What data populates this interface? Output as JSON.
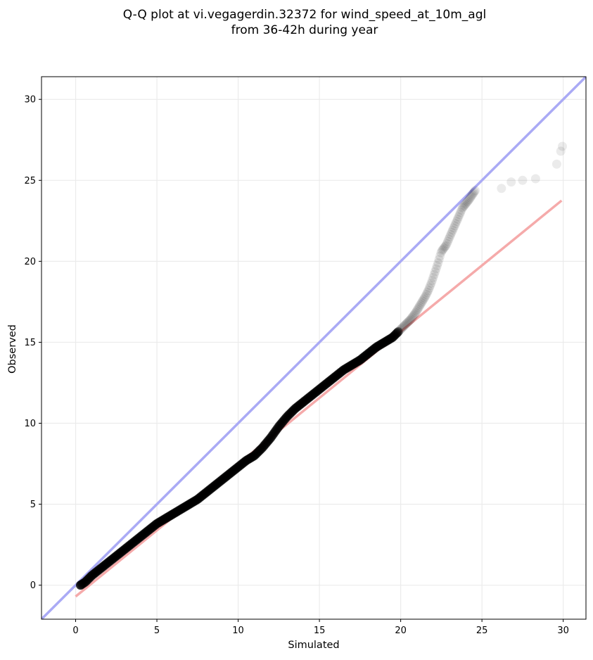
{
  "chart_data": {
    "type": "scatter",
    "title": [
      "Q-Q plot at vi.vegagerdin.32372 for wind_speed_at_10m_agl",
      "from 36-42h during year"
    ],
    "xlabel": "Simulated",
    "ylabel": "Observed",
    "xlim": [
      -2.1,
      31.4
    ],
    "ylim": [
      -2.1,
      31.4
    ],
    "xticks": [
      0,
      5,
      10,
      15,
      20,
      25,
      30
    ],
    "yticks": [
      0,
      5,
      10,
      15,
      20,
      25,
      30
    ],
    "grid": true,
    "colors": {
      "points": "#000000",
      "identity_line": "#aaaaf5",
      "fit_line": "#f5aaaa",
      "frame": "#000000",
      "grid": "#ebebeb"
    },
    "reference_lines": [
      {
        "kind": "identity",
        "x": [
          -2.1,
          31.4
        ],
        "y": [
          -2.1,
          31.4
        ]
      },
      {
        "kind": "regression",
        "x": [
          0.0,
          29.9
        ],
        "y": [
          -0.7,
          23.75
        ]
      }
    ],
    "quantile_points": {
      "x": [
        0.3,
        0.6,
        1.0,
        1.5,
        2.0,
        2.5,
        3.0,
        3.5,
        4.0,
        4.5,
        5.0,
        5.5,
        6.0,
        6.5,
        7.0,
        7.5,
        8.0,
        8.5,
        9.0,
        9.5,
        10.0,
        10.5,
        11.0,
        11.5,
        12.0,
        12.5,
        13.0,
        13.5,
        14.0,
        14.5,
        15.0,
        15.5,
        16.0,
        16.5,
        17.0,
        17.5,
        18.0,
        18.5,
        19.0,
        19.5,
        19.9,
        20.3,
        20.6,
        20.9,
        21.2,
        21.5,
        21.7,
        21.9,
        22.1,
        22.3,
        22.5,
        22.8,
        23.1,
        23.5,
        23.8,
        24.2,
        24.6,
        26.2,
        26.8,
        27.5,
        28.3,
        29.6,
        29.85,
        29.95
      ],
      "y": [
        0.0,
        0.2,
        0.6,
        1.0,
        1.4,
        1.8,
        2.2,
        2.6,
        3.0,
        3.4,
        3.8,
        4.1,
        4.4,
        4.7,
        5.0,
        5.3,
        5.7,
        6.1,
        6.5,
        6.9,
        7.3,
        7.7,
        8.0,
        8.5,
        9.1,
        9.8,
        10.4,
        10.9,
        11.3,
        11.7,
        12.1,
        12.5,
        12.9,
        13.3,
        13.6,
        13.9,
        14.3,
        14.7,
        15.0,
        15.3,
        15.7,
        16.1,
        16.4,
        16.8,
        17.3,
        17.8,
        18.2,
        18.7,
        19.3,
        19.9,
        20.6,
        21.0,
        21.7,
        22.6,
        23.3,
        23.8,
        24.4,
        24.5,
        24.9,
        25.0,
        25.1,
        26.0,
        26.8,
        27.1
      ]
    }
  }
}
